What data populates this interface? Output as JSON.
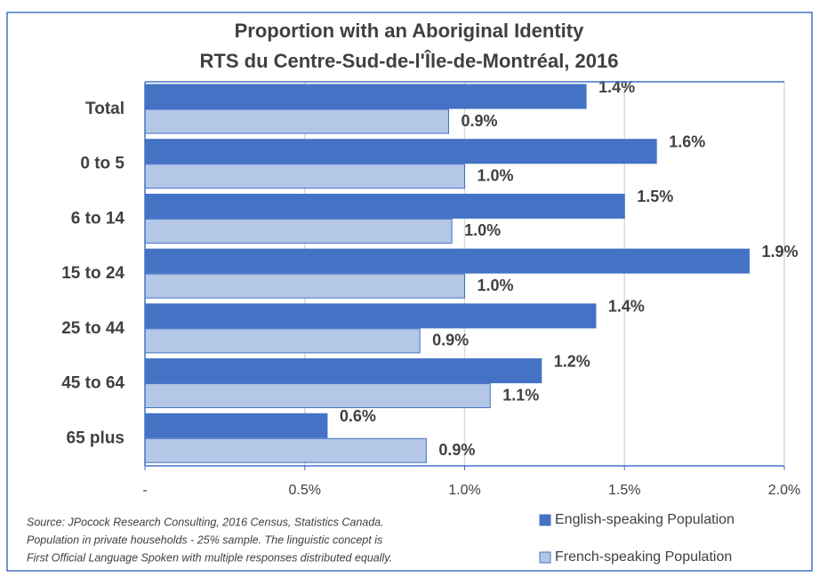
{
  "chart_data": {
    "type": "barh",
    "title_lines": [
      "Proportion with an Aboriginal Identity",
      "RTS du Centre-Sud-de-l'Île-de-Montréal, 2016"
    ],
    "categories": [
      "Total",
      "0 to 5",
      "6 to 14",
      "15 to 24",
      "25 to 44",
      "45 to 64",
      "65 plus"
    ],
    "series": [
      {
        "name": "English-speaking Population",
        "color": "#4472c4",
        "values": [
          1.38,
          1.6,
          1.5,
          1.89,
          1.41,
          1.24,
          0.57
        ],
        "value_labels": [
          "1.4%",
          "1.6%",
          "1.5%",
          "1.9%",
          "1.4%",
          "1.2%",
          "0.6%"
        ]
      },
      {
        "name": "French-speaking Population",
        "color": "#b4c7e7",
        "values": [
          0.95,
          1.0,
          0.96,
          1.0,
          0.86,
          1.08,
          0.88
        ],
        "value_labels": [
          "0.9%",
          "1.0%",
          "1.0%",
          "1.0%",
          "0.9%",
          "1.1%",
          "0.9%"
        ]
      }
    ],
    "xlim": [
      0,
      2.0
    ],
    "xticks": [
      {
        "value": 0,
        "label": "-"
      },
      {
        "value": 0.5,
        "label": "0.5%"
      },
      {
        "value": 1.0,
        "label": "1.0%"
      },
      {
        "value": 1.5,
        "label": "1.5%"
      },
      {
        "value": 2.0,
        "label": "2.0%"
      }
    ],
    "grid": true,
    "legend": "bottom-right",
    "source_lines": [
      "Source: JPocock Research Consulting, 2016 Census, Statistics Canada.",
      "Population in private households - 25% sample. The linguistic concept is",
      "First Official Language Spoken with multiple responses distributed equally."
    ]
  }
}
